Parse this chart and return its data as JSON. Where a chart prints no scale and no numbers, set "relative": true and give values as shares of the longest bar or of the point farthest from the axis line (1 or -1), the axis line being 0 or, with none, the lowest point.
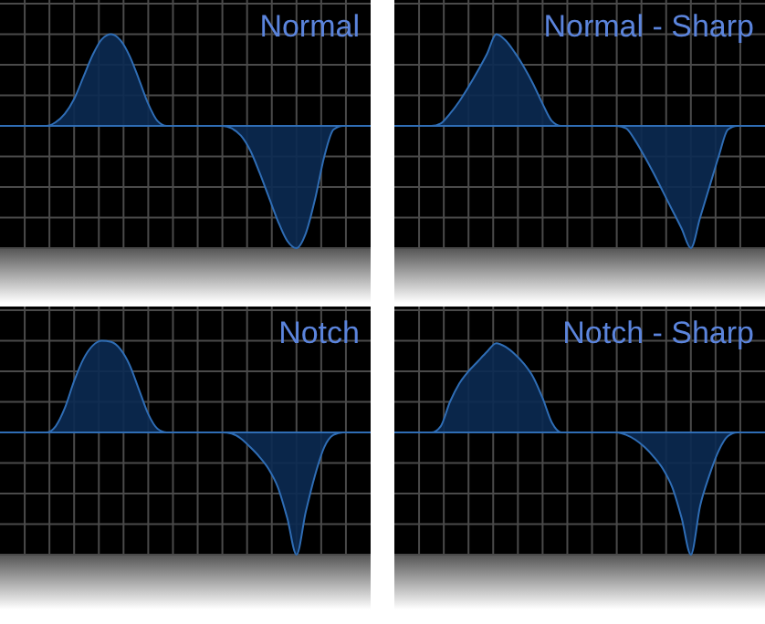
{
  "chart_data": [
    {
      "type": "area",
      "title": "Normal",
      "relative": true,
      "grid": true,
      "color": "#0b2a52",
      "categories": [
        null,
        null,
        null,
        null,
        null,
        null,
        null,
        null,
        null,
        null,
        null,
        null,
        null,
        null,
        null,
        null,
        null,
        null,
        null,
        null,
        null,
        null,
        null,
        null,
        null,
        null,
        null,
        null,
        null,
        null,
        null,
        null,
        null,
        null,
        null,
        null,
        null,
        null,
        null,
        null,
        null
      ],
      "values": [
        0,
        0,
        0,
        0,
        0,
        0,
        0.03,
        0.1,
        0.22,
        0.4,
        0.58,
        0.71,
        0.75,
        0.7,
        0.57,
        0.38,
        0.18,
        0.04,
        0,
        0,
        0,
        0,
        0,
        0,
        0,
        -0.02,
        -0.08,
        -0.2,
        -0.38,
        -0.58,
        -0.78,
        -0.94,
        -1,
        -0.88,
        -0.6,
        -0.25,
        -0.03,
        0,
        0,
        0,
        0
      ]
    },
    {
      "type": "area",
      "title": "Normal - Sharp",
      "relative": true,
      "grid": true,
      "color": "#0b2a52",
      "categories": [
        null,
        null,
        null,
        null,
        null,
        null,
        null,
        null,
        null,
        null,
        null,
        null,
        null,
        null,
        null,
        null,
        null,
        null,
        null,
        null,
        null,
        null,
        null,
        null,
        null,
        null,
        null,
        null,
        null,
        null,
        null,
        null,
        null,
        null,
        null,
        null,
        null,
        null,
        null,
        null,
        null
      ],
      "values": [
        0,
        0,
        0,
        0,
        0,
        0.02,
        0.1,
        0.2,
        0.32,
        0.45,
        0.59,
        0.75,
        0.7,
        0.6,
        0.48,
        0.34,
        0.18,
        0.04,
        0,
        0,
        0,
        0,
        0,
        0,
        0,
        -0.02,
        -0.12,
        -0.25,
        -0.39,
        -0.54,
        -0.69,
        -0.84,
        -1,
        -0.75,
        -0.5,
        -0.25,
        -0.03,
        0,
        0,
        0,
        0
      ]
    },
    {
      "type": "area",
      "title": "Notch",
      "relative": true,
      "grid": true,
      "color": "#0b2a52",
      "categories": [
        null,
        null,
        null,
        null,
        null,
        null,
        null,
        null,
        null,
        null,
        null,
        null,
        null,
        null,
        null,
        null,
        null,
        null,
        null,
        null,
        null,
        null,
        null,
        null,
        null,
        null,
        null,
        null,
        null,
        null,
        null,
        null,
        null,
        null,
        null,
        null,
        null,
        null,
        null,
        null,
        null
      ],
      "values": [
        0,
        0,
        0,
        0,
        0,
        0,
        0.05,
        0.2,
        0.42,
        0.6,
        0.71,
        0.75,
        0.74,
        0.68,
        0.55,
        0.35,
        0.15,
        0.03,
        0,
        0,
        0,
        0,
        0,
        0,
        0,
        -0.01,
        -0.05,
        -0.12,
        -0.2,
        -0.3,
        -0.45,
        -0.7,
        -1,
        -0.65,
        -0.35,
        -0.12,
        -0.02,
        0,
        0,
        0,
        0
      ]
    },
    {
      "type": "area",
      "title": "Notch - Sharp",
      "relative": true,
      "grid": true,
      "color": "#0b2a52",
      "categories": [
        null,
        null,
        null,
        null,
        null,
        null,
        null,
        null,
        null,
        null,
        null,
        null,
        null,
        null,
        null,
        null,
        null,
        null,
        null,
        null,
        null,
        null,
        null,
        null,
        null,
        null,
        null,
        null,
        null,
        null,
        null,
        null,
        null,
        null,
        null,
        null,
        null,
        null,
        null,
        null,
        null
      ],
      "values": [
        0,
        0,
        0,
        0,
        0,
        0.05,
        0.25,
        0.4,
        0.5,
        0.58,
        0.66,
        0.73,
        0.7,
        0.64,
        0.56,
        0.45,
        0.28,
        0.08,
        0,
        0,
        0,
        0,
        0,
        0,
        0,
        -0.02,
        -0.06,
        -0.12,
        -0.2,
        -0.3,
        -0.45,
        -0.7,
        -1,
        -0.6,
        -0.35,
        -0.15,
        -0.03,
        0,
        0,
        0,
        0
      ]
    }
  ]
}
